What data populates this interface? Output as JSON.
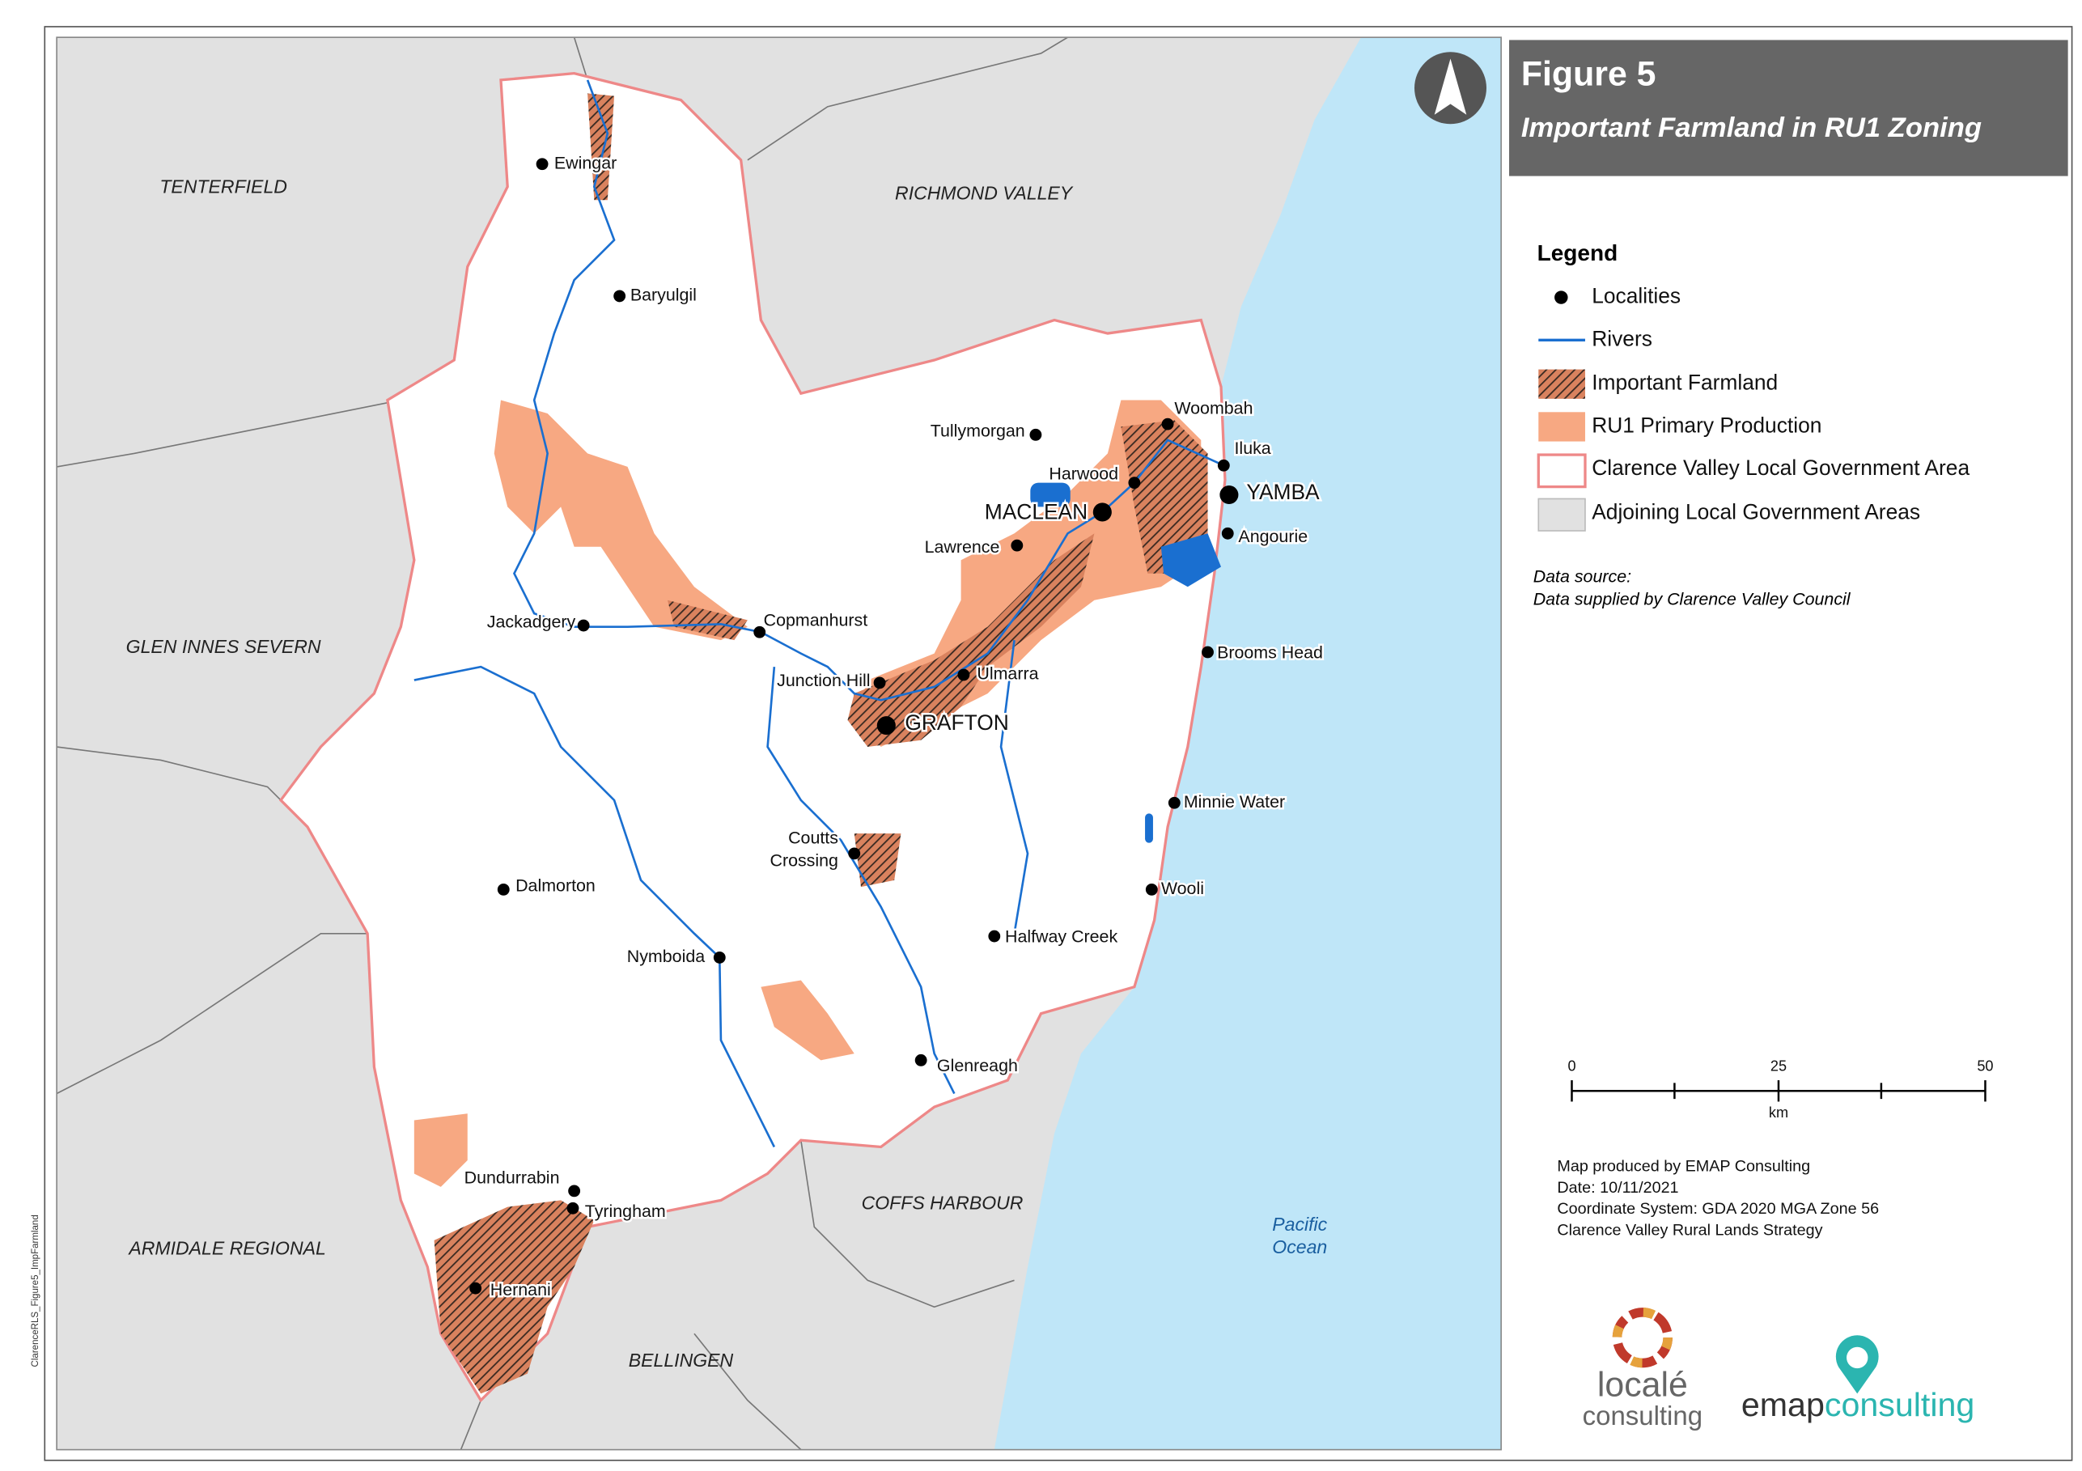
{
  "header": {
    "title": "Figure 5",
    "subtitle": "Important Farmland in RU1 Zoning"
  },
  "legend": {
    "title": "Legend",
    "items": [
      "Localities",
      "Rivers",
      "Important Farmland",
      "RU1 Primary Production",
      "Clarence Valley Local Government Area",
      "Adjoining Local Government Areas"
    ]
  },
  "data_source": {
    "label": "Data source:",
    "text": "Data supplied by Clarence Valley Council"
  },
  "scale_bar": {
    "ticks": [
      0,
      25,
      50
    ],
    "unit": "km"
  },
  "credits": [
    "Map produced by EMAP Consulting",
    "Date: 10/11/2021",
    "Coordinate System: GDA 2020 MGA Zone 56",
    "Clarence Valley Rural Lands Strategy"
  ],
  "regions": [
    "TENTERFIELD",
    "RICHMOND VALLEY",
    "GLEN INNES SEVERN",
    "ARMIDALE REGIONAL",
    "COFFS HARBOUR",
    "BELLINGEN"
  ],
  "ocean": [
    "Pacific",
    "Ocean"
  ],
  "localities": [
    "Ewingar",
    "Baryulgil",
    "Tullymorgan",
    "Woombah",
    "Iluka",
    "Harwood",
    "Angourie",
    "Lawrence",
    "Jackadgery",
    "Copmanhurst",
    "Junction Hill",
    "Ulmarra",
    "Brooms Head",
    "Minnie Water",
    "Wooli",
    "Halfway Creek",
    "Nymboida",
    "Dalmorton",
    "Glenreagh",
    "Dundurrabin",
    "Tyringham",
    "Hernani"
  ],
  "coutts_crossing": [
    "Coutts",
    "Crossing"
  ],
  "major_towns": [
    "MACLEAN",
    "YAMBA",
    "GRAFTON"
  ],
  "logos": {
    "locale": [
      "localé",
      "consulting"
    ],
    "emap": [
      "emap",
      "consulting"
    ]
  },
  "file_label": "ClarenceRLS_Figure5_ImpFarmland"
}
